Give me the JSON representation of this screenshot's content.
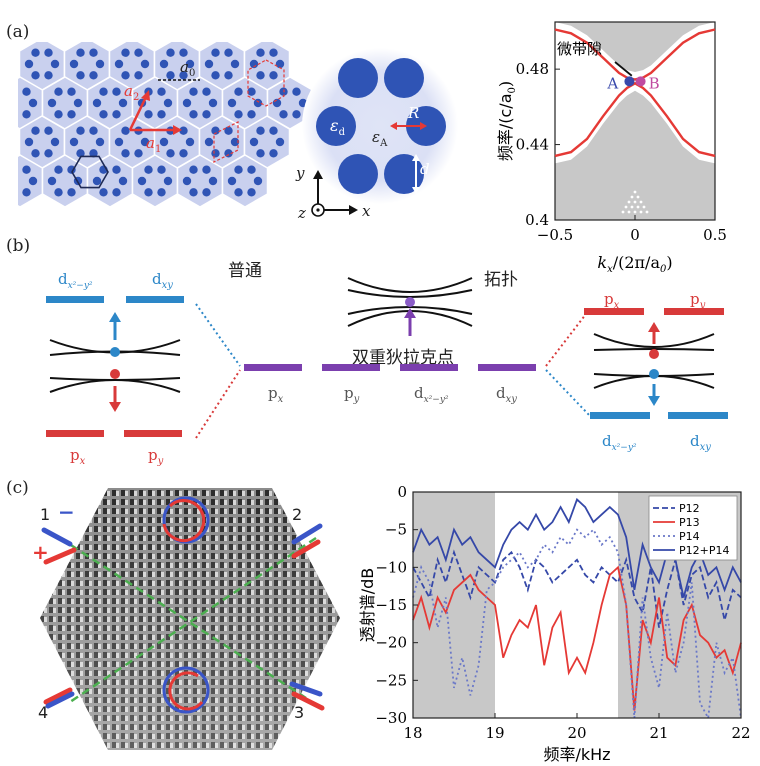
{
  "panels": {
    "a": {
      "label": "(a)",
      "lattice_const": "a",
      "lattice_const_sub": "0",
      "vec_a1": "a",
      "vec_a1_sub": "1",
      "vec_a2": "a",
      "vec_a2_sub": "2",
      "eps_d": "ε",
      "eps_d_sub": "d",
      "eps_A": "ε",
      "eps_A_sub": "A",
      "radius": "R",
      "diameter": "d",
      "axis_x": "x",
      "axis_y": "y",
      "axis_z": "z"
    },
    "b": {
      "label": "(b)",
      "trivial": "普通",
      "topological": "拓扑",
      "double_dirac": "双重狄拉克点",
      "orbitals": {
        "px": "p",
        "px_sub": "x",
        "py": "p",
        "py_sub": "y",
        "dx2y2": "d",
        "dx2y2_sub": "x²−y²",
        "dxy": "d",
        "dxy_sub": "xy"
      },
      "colors": {
        "p": "#d83a3a",
        "d": "#2c87c8",
        "mid": "#7b3fae"
      }
    },
    "c": {
      "label": "(c)",
      "ports": [
        "1",
        "2",
        "3",
        "4"
      ],
      "minus": "−",
      "plus": "+"
    }
  },
  "chart_data": [
    {
      "type": "line",
      "title": "",
      "xlabel": "k",
      "xlabel_sub": "x",
      "xlabel_rest": "/(2π/a",
      "xlabel_rest_sub": "0",
      "xlabel_end": ")",
      "ylabel": "频率/(c/a",
      "ylabel_sub": "0",
      "ylabel_end": ")",
      "xlim": [
        -0.5,
        0.5
      ],
      "ylim": [
        0.4,
        0.505
      ],
      "xticks": [
        "−0.5",
        "0",
        "0.5"
      ],
      "xtick_values": [
        -0.5,
        0,
        0.5
      ],
      "yticks": [
        "0.4",
        "0.44",
        "0.48"
      ],
      "ytick_values": [
        0.4,
        0.44,
        0.48
      ],
      "annotation": "微带隙",
      "point_A": "A",
      "point_B": "B",
      "colors": {
        "band": "#e53935",
        "bulk": "#c8c8c8",
        "A": "#3949ab",
        "B": "#c04aa0"
      },
      "series": [
        {
          "values_x": [
            -0.5,
            -0.4,
            -0.3,
            -0.2,
            -0.1,
            -0.05,
            0,
            0.05,
            0.1,
            0.2,
            0.3,
            0.4,
            0.5
          ],
          "values_y": [
            0.434,
            0.436,
            0.443,
            0.455,
            0.466,
            0.47,
            0.4725,
            0.47,
            0.466,
            0.455,
            0.443,
            0.436,
            0.434
          ]
        },
        {
          "values_x": [
            -0.5,
            -0.4,
            -0.3,
            -0.2,
            -0.1,
            -0.05,
            0,
            0.05,
            0.1,
            0.2,
            0.3,
            0.4,
            0.5
          ],
          "values_y": [
            0.501,
            0.499,
            0.494,
            0.486,
            0.478,
            0.4755,
            0.4745,
            0.4755,
            0.478,
            0.486,
            0.494,
            0.499,
            0.501
          ]
        }
      ]
    },
    {
      "type": "line",
      "title": "",
      "xlabel": "频率/kHz",
      "ylabel": "透射谱/dB",
      "xlim": [
        18,
        22
      ],
      "ylim": [
        -30,
        0
      ],
      "xticks": [
        "18",
        "19",
        "20",
        "21",
        "22"
      ],
      "xtick_values": [
        18,
        19,
        20,
        21,
        22
      ],
      "yticks": [
        "0",
        "−5",
        "−10",
        "−15",
        "−20",
        "−25",
        "−30"
      ],
      "ytick_values": [
        0,
        -5,
        -10,
        -15,
        -20,
        -25,
        -30
      ],
      "shaded": [
        [
          18,
          19
        ],
        [
          20.5,
          22
        ]
      ],
      "legend_position": "top-right",
      "series": [
        {
          "name": "P12",
          "style": "dashed",
          "color": "#3548a8",
          "x": [
            18.0,
            18.1,
            18.2,
            18.3,
            18.4,
            18.5,
            18.6,
            18.7,
            18.8,
            18.9,
            19.0,
            19.1,
            19.2,
            19.3,
            19.4,
            19.5,
            19.6,
            19.7,
            19.8,
            19.9,
            20.0,
            20.1,
            20.2,
            20.3,
            20.4,
            20.5,
            20.6,
            20.7,
            20.8,
            20.9,
            21.0,
            21.1,
            21.2,
            21.3,
            21.4,
            21.5,
            21.6,
            21.7,
            21.8,
            21.9,
            22.0
          ],
          "y": [
            -10,
            -12,
            -14,
            -9,
            -12,
            -8,
            -11,
            -14,
            -10,
            -11,
            -12,
            -9,
            -8,
            -10,
            -13,
            -9,
            -10,
            -12,
            -11,
            -10,
            -9,
            -11,
            -12,
            -10,
            -11,
            -12,
            -9,
            -14,
            -16,
            -10,
            -18,
            -13,
            -9,
            -15,
            -11,
            -10,
            -14,
            -12,
            -17,
            -13,
            -14
          ]
        },
        {
          "name": "P13",
          "style": "solid",
          "color": "#e53935",
          "x": [
            18.0,
            18.1,
            18.2,
            18.3,
            18.4,
            18.5,
            18.6,
            18.7,
            18.8,
            18.9,
            19.0,
            19.1,
            19.2,
            19.3,
            19.4,
            19.5,
            19.6,
            19.7,
            19.8,
            19.9,
            20.0,
            20.1,
            20.2,
            20.3,
            20.4,
            20.5,
            20.6,
            20.7,
            20.8,
            20.9,
            21.0,
            21.1,
            21.2,
            21.3,
            21.4,
            21.5,
            21.6,
            21.7,
            21.8,
            21.9,
            22.0
          ],
          "y": [
            -17,
            -14,
            -18,
            -14,
            -16,
            -13,
            -12,
            -11,
            -13,
            -14,
            -15,
            -22,
            -19,
            -17,
            -18,
            -15,
            -23,
            -18,
            -16,
            -24,
            -22,
            -24,
            -20,
            -15,
            -11,
            -10,
            -15,
            -29,
            -17,
            -20,
            -14,
            -22,
            -23,
            -17,
            -15,
            -19,
            -20,
            -22,
            -21,
            -24,
            -20
          ]
        },
        {
          "name": "P14",
          "style": "dotted",
          "color": "#6a78c8",
          "x": [
            18.0,
            18.1,
            18.2,
            18.3,
            18.4,
            18.5,
            18.6,
            18.7,
            18.8,
            18.9,
            19.0,
            19.1,
            19.2,
            19.3,
            19.4,
            19.5,
            19.6,
            19.7,
            19.8,
            19.9,
            20.0,
            20.1,
            20.2,
            20.3,
            20.4,
            20.5,
            20.6,
            20.7,
            20.8,
            20.9,
            21.0,
            21.1,
            21.2,
            21.3,
            21.4,
            21.5,
            21.6,
            21.7,
            21.8,
            21.9,
            22.0
          ],
          "y": [
            -14,
            -10,
            -12,
            -18,
            -14,
            -26,
            -22,
            -27,
            -23,
            -13,
            -12,
            -10,
            -9,
            -8,
            -10,
            -9,
            -7,
            -8,
            -6,
            -7,
            -5,
            -6,
            -5,
            -7,
            -6,
            -8,
            -15,
            -30,
            -14,
            -22,
            -26,
            -16,
            -24,
            -20,
            -12,
            -28,
            -30,
            -20,
            -24,
            -22,
            -30
          ]
        },
        {
          "name": "P12+P14",
          "style": "solid",
          "color": "#3548a8",
          "x": [
            18.0,
            18.1,
            18.2,
            18.3,
            18.4,
            18.5,
            18.6,
            18.7,
            18.8,
            18.9,
            19.0,
            19.1,
            19.2,
            19.3,
            19.4,
            19.5,
            19.6,
            19.7,
            19.8,
            19.9,
            20.0,
            20.1,
            20.2,
            20.3,
            20.4,
            20.5,
            20.6,
            20.7,
            20.8,
            20.9,
            21.0,
            21.1,
            21.2,
            21.3,
            21.4,
            21.5,
            21.6,
            21.7,
            21.8,
            21.9,
            22.0
          ],
          "y": [
            -8,
            -5,
            -7,
            -6,
            -9,
            -5,
            -7,
            -6,
            -8,
            -9,
            -10,
            -7,
            -5,
            -4,
            -5,
            -3,
            -5,
            -4,
            -2,
            -4,
            -1,
            -2,
            -4,
            -3,
            -2,
            -3,
            -6,
            -13,
            -7,
            -10,
            -12,
            -8,
            -9,
            -14,
            -10,
            -8,
            -11,
            -10,
            -13,
            -10,
            -12
          ]
        }
      ]
    }
  ]
}
